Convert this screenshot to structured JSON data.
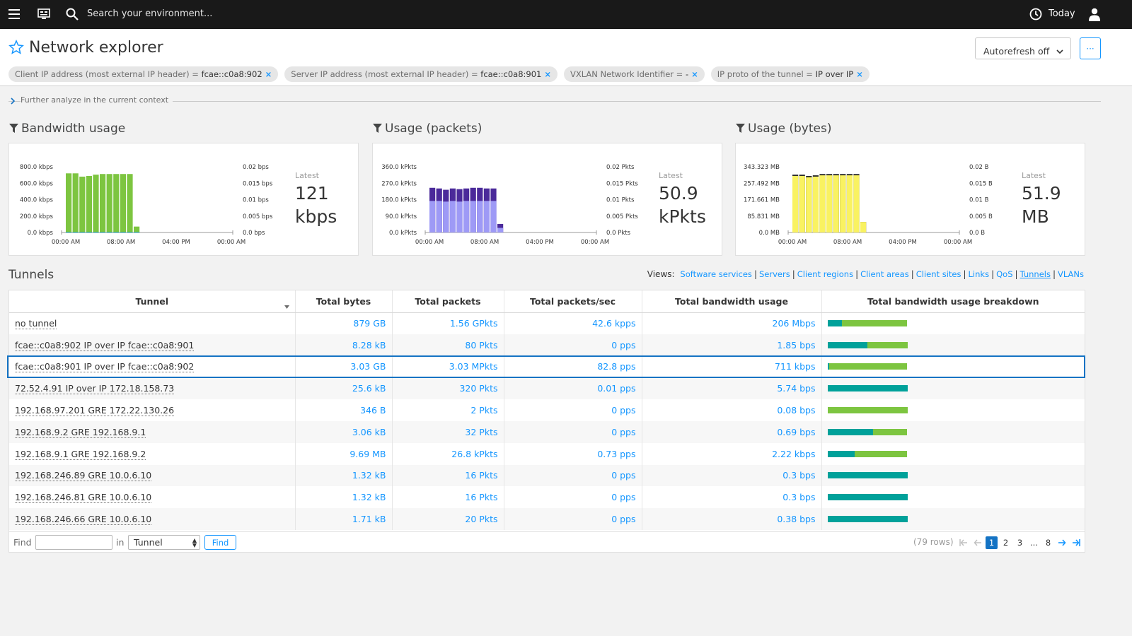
{
  "topbar": {
    "search_placeholder": "Search your environment...",
    "timeframe": "Today"
  },
  "header": {
    "title": "Network explorer",
    "autorefresh_label": "Autorefresh off",
    "more_label": "···",
    "filters": [
      {
        "key": "Client IP address (most external IP header) =",
        "value": "fcae::c0a8:902"
      },
      {
        "key": "Server IP address (most external IP header) =",
        "value": "fcae::c0a8:901"
      },
      {
        "key": "VXLAN Network Identifier =",
        "value": "-"
      },
      {
        "key": "IP proto of the tunnel =",
        "value": "IP over IP"
      }
    ]
  },
  "further_analyze": "Further analyze in the current context",
  "charts": [
    {
      "title": "Bandwidth usage",
      "latest_label": "Latest",
      "latest_value": "121",
      "latest_unit": "kbps",
      "color": "#7dc540",
      "top_color": "#7dc540",
      "bottom_color": "#00a19a",
      "y_ticks": [
        "800.0 kbps",
        "600.0 kbps",
        "400.0 kbps",
        "200.0 kbps",
        "0.0 kbps"
      ],
      "y2_ticks": [
        "0.02 bps",
        "0.015 bps",
        "0.01 bps",
        "0.005 bps",
        "0.0 bps"
      ],
      "x_ticks": [
        "00:00 AM",
        "08:00 AM",
        "04:00 PM",
        "00:00 AM"
      ],
      "values": [
        0.9,
        0.9,
        0.85,
        0.86,
        0.88,
        0.89,
        0.89,
        0.89,
        0.89,
        0.89,
        0.09
      ],
      "bottom_values": [
        0.01,
        0.01,
        0.01,
        0.01,
        0.01,
        0.01,
        0.01,
        0.01,
        0.01,
        0.01,
        0.01
      ]
    },
    {
      "title": "Usage (packets)",
      "latest_label": "Latest",
      "latest_value": "50.9",
      "latest_unit": "kPkts",
      "top_color": "#4b2a9a",
      "bottom_color": "#9e9af6",
      "y_ticks": [
        "360.0 kPkts",
        "270.0 kPkts",
        "180.0 kPkts",
        "90.0 kPkts",
        "0.0 kPkts"
      ],
      "y2_ticks": [
        "0.02 Pkts",
        "0.015 Pkts",
        "0.01 Pkts",
        "0.005 Pkts",
        "0.0 Pkts"
      ],
      "x_ticks": [
        "00:00 AM",
        "08:00 AM",
        "04:00 PM",
        "00:00 AM"
      ],
      "values": [
        0.68,
        0.67,
        0.65,
        0.67,
        0.66,
        0.67,
        0.68,
        0.68,
        0.67,
        0.67,
        0.13
      ],
      "bottom_values": [
        0.48,
        0.48,
        0.47,
        0.48,
        0.47,
        0.48,
        0.48,
        0.48,
        0.48,
        0.48,
        0.07
      ]
    },
    {
      "title": "Usage (bytes)",
      "latest_label": "Latest",
      "latest_value": "51.9",
      "latest_unit": "MB",
      "top_color": "#2a2a2a",
      "bottom_color": "#f9f261",
      "y_ticks": [
        "343.323 MB",
        "257.492 MB",
        "171.661 MB",
        "85.831 MB",
        "0.0 MB"
      ],
      "y2_ticks": [
        "0.02 B",
        "0.015 B",
        "0.01 B",
        "0.005 B",
        "0.0 B"
      ],
      "x_ticks": [
        "00:00 AM",
        "08:00 AM",
        "04:00 PM",
        "00:00 AM"
      ],
      "values": [
        0.88,
        0.88,
        0.86,
        0.87,
        0.89,
        0.89,
        0.89,
        0.89,
        0.89,
        0.89,
        0.16
      ],
      "bottom_values": [
        0.86,
        0.86,
        0.84,
        0.85,
        0.87,
        0.87,
        0.87,
        0.87,
        0.87,
        0.87,
        0.16
      ]
    }
  ],
  "tunnels": {
    "title": "Tunnels",
    "views_label": "Views:",
    "views": [
      "Software services",
      "Servers",
      "Client regions",
      "Client areas",
      "Client sites",
      "Links",
      "QoS",
      "Tunnels",
      "VLANs"
    ],
    "active_view": "Tunnels",
    "columns": [
      "Tunnel",
      "Total bytes",
      "Total packets",
      "Total packets/sec",
      "Total bandwidth usage",
      "Total bandwidth usage breakdown"
    ],
    "rows": [
      {
        "tunnel": "no tunnel",
        "bytes": "879 GB",
        "packets": "1.56 GPkts",
        "pps": "42.6 kpps",
        "bw": "206 Mbps",
        "teal": 0.18
      },
      {
        "tunnel": "fcae::c0a8:902 IP over IP fcae::c0a8:901",
        "bytes": "8.28 kB",
        "packets": "80 Pkts",
        "pps": "0 pps",
        "bw": "1.85 bps",
        "teal": 0.5
      },
      {
        "tunnel": "fcae::c0a8:901 IP over IP fcae::c0a8:902",
        "bytes": "3.03 GB",
        "packets": "3.03 MPkts",
        "pps": "82.8 pps",
        "bw": "711 kbps",
        "teal": 0.02
      },
      {
        "tunnel": "72.52.4.91 IP over IP 172.18.158.73",
        "bytes": "25.6 kB",
        "packets": "320 Pkts",
        "pps": "0.01 pps",
        "bw": "5.74 bps",
        "teal": 1.0
      },
      {
        "tunnel": "192.168.97.201 GRE 172.22.130.26",
        "bytes": "346 B",
        "packets": "2 Pkts",
        "pps": "0 pps",
        "bw": "0.08 bps",
        "teal": 0.0
      },
      {
        "tunnel": "192.168.9.2 GRE 192.168.9.1",
        "bytes": "3.06 kB",
        "packets": "32 Pkts",
        "pps": "0 pps",
        "bw": "0.69 bps",
        "teal": 0.57
      },
      {
        "tunnel": "192.168.9.1 GRE 192.168.9.2",
        "bytes": "9.69 MB",
        "packets": "26.8 kPkts",
        "pps": "0.73 pps",
        "bw": "2.22 kbps",
        "teal": 0.34
      },
      {
        "tunnel": "192.168.246.89 GRE 10.0.6.10",
        "bytes": "1.32 kB",
        "packets": "16 Pkts",
        "pps": "0 pps",
        "bw": "0.3 bps",
        "teal": 1.0
      },
      {
        "tunnel": "192.168.246.81 GRE 10.0.6.10",
        "bytes": "1.32 kB",
        "packets": "16 Pkts",
        "pps": "0 pps",
        "bw": "0.3 bps",
        "teal": 1.0
      },
      {
        "tunnel": "192.168.246.66 GRE 10.0.6.10",
        "bytes": "1.71 kB",
        "packets": "20 Pkts",
        "pps": "0 pps",
        "bw": "0.38 bps",
        "teal": 1.0
      }
    ],
    "selected_row": 2,
    "find_label": "Find",
    "in_label": "in",
    "find_select_value": "Tunnel",
    "find_button": "Find",
    "rows_count": "(79 rows)",
    "pages": [
      "1",
      "2",
      "3",
      "...",
      "8"
    ],
    "current_page": "1"
  }
}
